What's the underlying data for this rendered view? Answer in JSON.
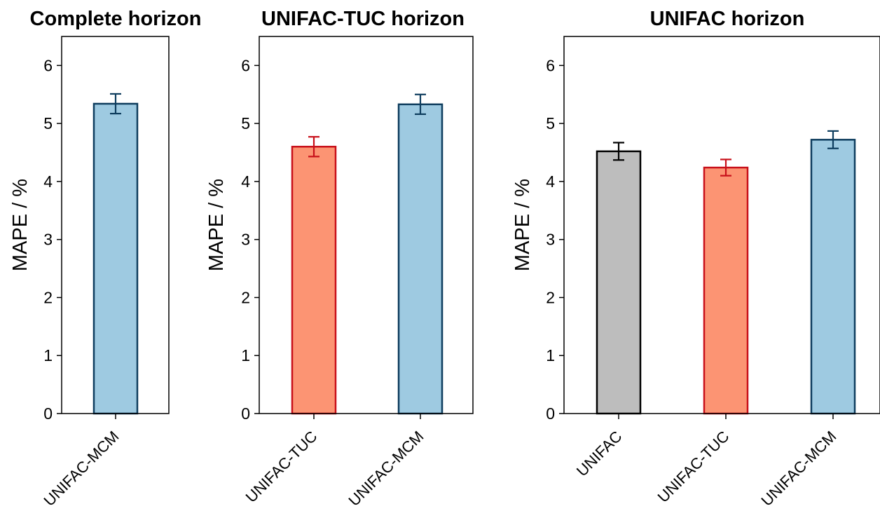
{
  "chart_data": [
    {
      "type": "bar",
      "title": "Complete horizon",
      "ylabel": "MAPE / %",
      "xlabel": "",
      "ylim": [
        0,
        6.5
      ],
      "yticks": [
        "0",
        "1",
        "2",
        "3",
        "4",
        "5",
        "6"
      ],
      "categories": [
        "UNIFAC-MCM"
      ],
      "values": [
        5.34
      ],
      "errors": [
        0.17
      ],
      "colors": [
        {
          "fill": "#9ecae1",
          "edge": "#0e3d5e"
        }
      ]
    },
    {
      "type": "bar",
      "title": "UNIFAC-TUC horizon",
      "ylabel": "MAPE / %",
      "xlabel": "",
      "ylim": [
        0,
        6.5
      ],
      "yticks": [
        "0",
        "1",
        "2",
        "3",
        "4",
        "5",
        "6"
      ],
      "categories": [
        "UNIFAC-TUC",
        "UNIFAC-MCM"
      ],
      "values": [
        4.6,
        5.33
      ],
      "errors": [
        0.17,
        0.17
      ],
      "colors": [
        {
          "fill": "#fc9473",
          "edge": "#c8101a"
        },
        {
          "fill": "#9ecae1",
          "edge": "#0e3d5e"
        }
      ]
    },
    {
      "type": "bar",
      "title": "UNIFAC horizon",
      "ylabel": "MAPE / %",
      "xlabel": "",
      "ylim": [
        0,
        6.5
      ],
      "yticks": [
        "0",
        "1",
        "2",
        "3",
        "4",
        "5",
        "6"
      ],
      "categories": [
        "UNIFAC",
        "UNIFAC-TUC",
        "UNIFAC-MCM"
      ],
      "values": [
        4.52,
        4.24,
        4.72
      ],
      "errors": [
        0.15,
        0.14,
        0.15
      ],
      "colors": [
        {
          "fill": "#bdbdbd",
          "edge": "#000000"
        },
        {
          "fill": "#fc9473",
          "edge": "#c8101a"
        },
        {
          "fill": "#9ecae1",
          "edge": "#0e3d5e"
        }
      ]
    }
  ]
}
